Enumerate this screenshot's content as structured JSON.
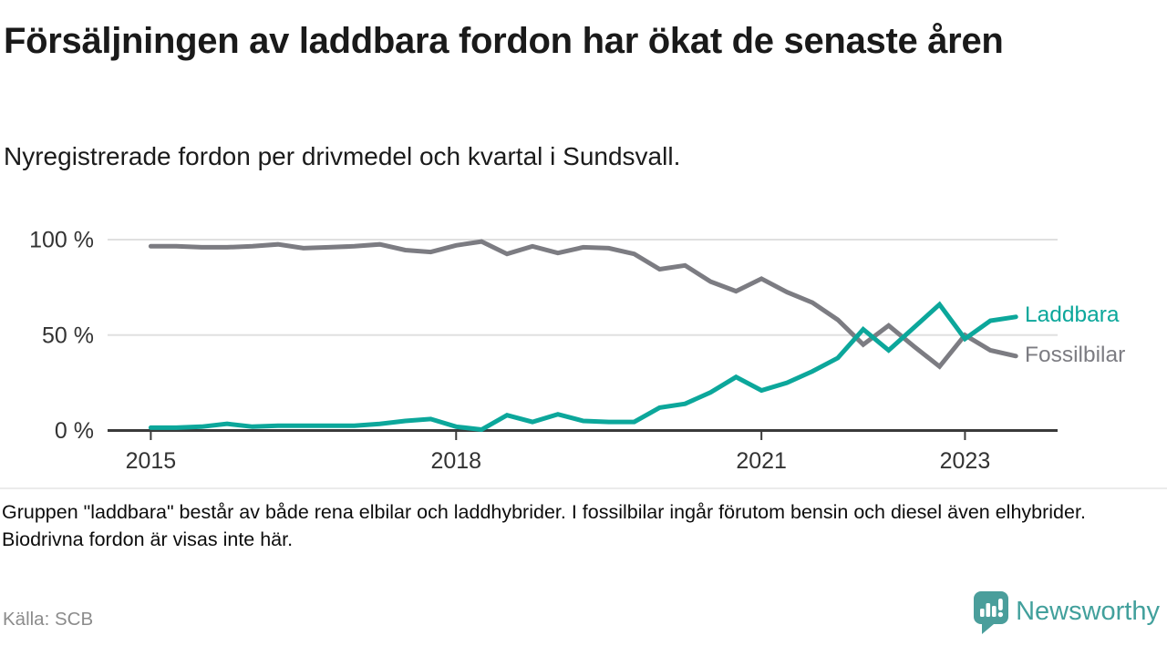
{
  "header": {
    "title": "Försäljningen av laddbara fordon har ökat de senaste åren",
    "subtitle": "Nyregistrerade fordon per drivmedel och kvartal i Sundsvall."
  },
  "chart_data": {
    "type": "line",
    "title": "Försäljningen av laddbara fordon har ökat de senaste åren",
    "xlabel": "",
    "ylabel": "",
    "unit": "%",
    "ylim": [
      0,
      100
    ],
    "grid": "horizontal",
    "legend_position": "right-of-line-ends",
    "categories": [
      "2015 Q1",
      "2015 Q2",
      "2015 Q3",
      "2015 Q4",
      "2016 Q1",
      "2016 Q2",
      "2016 Q3",
      "2016 Q4",
      "2017 Q1",
      "2017 Q2",
      "2017 Q3",
      "2017 Q4",
      "2018 Q1",
      "2018 Q2",
      "2018 Q3",
      "2018 Q4",
      "2019 Q1",
      "2019 Q2",
      "2019 Q3",
      "2019 Q4",
      "2020 Q1",
      "2020 Q2",
      "2020 Q3",
      "2020 Q4",
      "2021 Q1",
      "2021 Q2",
      "2021 Q3",
      "2021 Q4",
      "2022 Q1",
      "2022 Q2",
      "2022 Q3",
      "2022 Q4",
      "2023 Q1",
      "2023 Q2",
      "2023 Q3"
    ],
    "series": [
      {
        "name": "Laddbara",
        "color": "#0ca79b",
        "values": [
          1.5,
          1.5,
          2,
          3.5,
          2,
          2.5,
          2.5,
          2.5,
          2.5,
          3.5,
          5,
          6,
          2,
          0.5,
          8,
          4.5,
          8.5,
          5,
          4.5,
          4.5,
          12,
          14,
          20,
          28,
          21,
          25,
          31,
          38,
          53,
          42,
          54,
          66,
          48,
          57.5,
          59.5
        ]
      },
      {
        "name": "Fossilbilar",
        "color": "#7c7c82",
        "values": [
          96.5,
          96.5,
          96,
          96,
          96.5,
          97.5,
          95.5,
          96,
          96.5,
          97.5,
          94.5,
          93.5,
          97,
          99,
          92.5,
          96.5,
          93,
          96,
          95.5,
          92.5,
          84.5,
          86.5,
          78,
          73,
          79.5,
          72.5,
          67,
          58,
          45,
          55,
          44,
          33.5,
          50,
          42,
          39
        ]
      }
    ],
    "y_ticks": [
      {
        "label": "100 %",
        "value": 100
      },
      {
        "label": "50 %",
        "value": 50
      },
      {
        "label": "0 %",
        "value": 0
      }
    ],
    "x_ticks": [
      {
        "label": "2015",
        "index": 0
      },
      {
        "label": "2018",
        "index": 12
      },
      {
        "label": "2021",
        "index": 24
      },
      {
        "label": "2023",
        "index": 32
      }
    ]
  },
  "footer": {
    "note": "Gruppen \"laddbara\" består av både rena elbilar och laddhybrider. I fossilbilar ingår förutom bensin och diesel även elhybrider. Biodrivna fordon är visas inte här.",
    "source": "Källa: SCB"
  },
  "branding": {
    "name": "Newsworthy"
  },
  "colors": {
    "accent_teal": "#0ca79b",
    "line_gray": "#7c7c82",
    "grid": "#e0e0e0",
    "axis": "#3a3a3a",
    "tick_text": "#333333",
    "source_text": "#8c8c8c",
    "brand": "#42a09c",
    "divider": "#ebebeb"
  }
}
